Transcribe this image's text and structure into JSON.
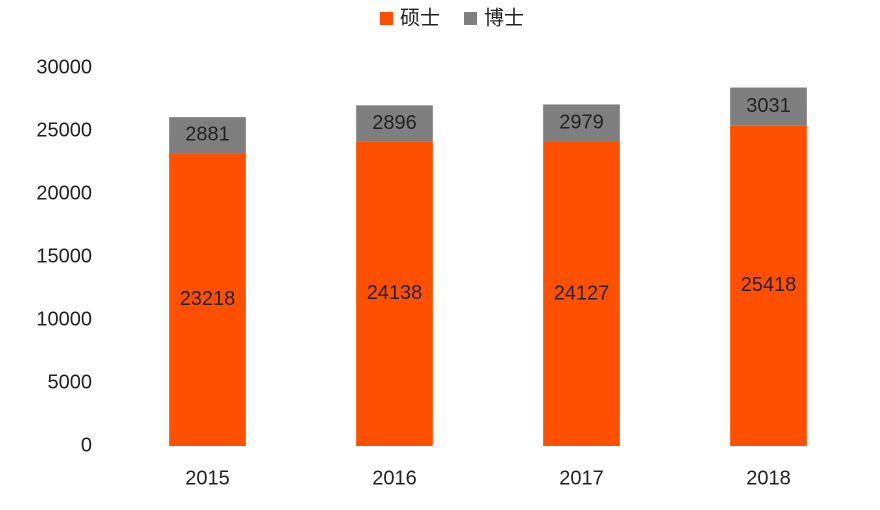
{
  "chart_data": {
    "type": "stacked_bar",
    "categories": [
      "2015",
      "2016",
      "2017",
      "2018"
    ],
    "series": [
      {
        "name": "硕士",
        "color": "#fe5000",
        "values": [
          23218,
          24138,
          24127,
          25418
        ]
      },
      {
        "name": "博士",
        "color": "#7f7f7f",
        "values": [
          2881,
          2896,
          2979,
          3031
        ]
      }
    ],
    "ylim": [
      0,
      30000
    ],
    "yticks": [
      0,
      5000,
      10000,
      15000,
      20000,
      25000,
      30000
    ],
    "grid": false,
    "legend": "top"
  }
}
